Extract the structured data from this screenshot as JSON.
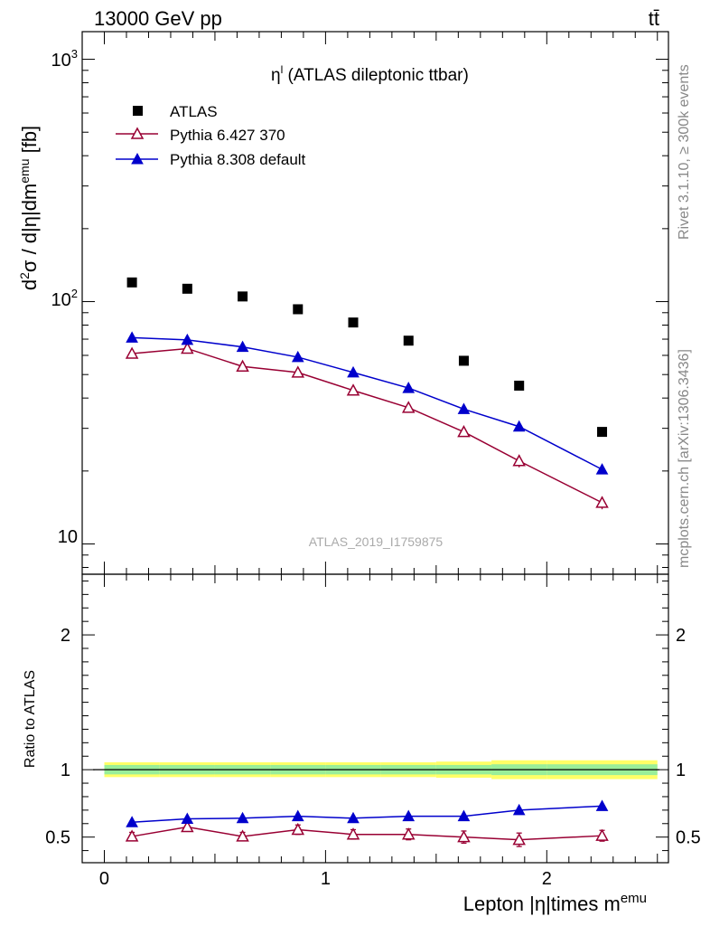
{
  "header": {
    "beam_label": "13000 GeV pp",
    "process_label": "tt̄"
  },
  "side_text": {
    "rivet": "Rivet 3.1.10, ≥ 300k events",
    "mcplots": "mcplots.cern.ch [arXiv:1306.3436]"
  },
  "colors": {
    "atlas": "#000000",
    "pythia6": "#990033",
    "pythia8": "#0000cc",
    "band_outer": "#ffff66",
    "band_inner": "#99ee99"
  },
  "chart_data": [
    {
      "type": "scatter",
      "title_main": "η",
      "title_sup": "l",
      "title_rest": " (ATLAS dileptonic ttbar)",
      "ylabel": "d²σ / d|η|dmᵉᵐᵘ [fb]",
      "ylabel_parts": {
        "d": "d",
        "sup2": "2",
        "mid": "σ / d|η|dm",
        "supemu": "emu",
        "unit": " [fb]"
      },
      "yscale": "log",
      "ylim": [
        7.5,
        1300
      ],
      "xlim": [
        -0.1,
        2.55
      ],
      "ytick_labels": [
        {
          "base": "10",
          "exp": "",
          "value": 10
        },
        {
          "base": "10",
          "exp": "2",
          "value": 100
        },
        {
          "base": "10",
          "exp": "3",
          "value": 1000
        }
      ],
      "watermark": "ATLAS_2019_I1759875",
      "x": [
        0.125,
        0.375,
        0.625,
        0.875,
        1.125,
        1.375,
        1.625,
        1.875,
        2.25
      ],
      "series": [
        {
          "name": "ATLAS",
          "marker": "square",
          "values": [
            120,
            113,
            105,
            93,
            82,
            69,
            57,
            45,
            29
          ]
        },
        {
          "name": "Pythia 6.427 370",
          "marker": "open-triangle",
          "values": [
            61,
            64,
            54,
            51,
            43,
            36.5,
            29,
            22,
            14.8
          ],
          "errors": [
            1.5,
            1.6,
            1.5,
            1.5,
            1.4,
            1.3,
            1.3,
            1.3,
            0.9
          ]
        },
        {
          "name": "Pythia 8.308 default",
          "marker": "filled-triangle",
          "values": [
            71,
            69.5,
            65,
            59,
            51,
            44,
            36,
            30.5,
            20.3
          ]
        }
      ],
      "legend_position": "top-left"
    },
    {
      "type": "scatter",
      "ylabel": "Ratio to ATLAS",
      "xlabel_main": "Lepton |η|times m",
      "xlabel_sup": "emu",
      "ylim": [
        0.31,
        2.45
      ],
      "xlim": [
        -0.1,
        2.55
      ],
      "yticks": [
        0.5,
        1,
        2
      ],
      "ytick_labels": [
        "0.5",
        "1",
        "2"
      ],
      "xticks": [
        0,
        1,
        2
      ],
      "xtick_labels": [
        "0",
        "1",
        "2"
      ],
      "band_edges": [
        0,
        0.25,
        0.5,
        0.75,
        1.0,
        1.25,
        1.5,
        1.75,
        2.0,
        2.5
      ],
      "band_outer_halfwidth": [
        0.055,
        0.055,
        0.055,
        0.055,
        0.055,
        0.055,
        0.06,
        0.07,
        0.07
      ],
      "band_inner_halfwidth": [
        0.035,
        0.035,
        0.035,
        0.035,
        0.035,
        0.035,
        0.035,
        0.04,
        0.04
      ],
      "x": [
        0.125,
        0.375,
        0.625,
        0.875,
        1.125,
        1.375,
        1.625,
        1.875,
        2.25
      ],
      "series": [
        {
          "name": "Pythia 6.427 370",
          "values": [
            0.505,
            0.575,
            0.505,
            0.555,
            0.52,
            0.52,
            0.5,
            0.48,
            0.51
          ],
          "errors": [
            0.03,
            0.03,
            0.03,
            0.035,
            0.035,
            0.04,
            0.045,
            0.05,
            0.04
          ]
        },
        {
          "name": "Pythia 8.308 default",
          "values": [
            0.61,
            0.635,
            0.64,
            0.655,
            0.64,
            0.655,
            0.655,
            0.7,
            0.73
          ],
          "errors": [
            0.01,
            0.01,
            0.01,
            0.01,
            0.01,
            0.012,
            0.015,
            0.015,
            0.015
          ]
        }
      ]
    }
  ]
}
